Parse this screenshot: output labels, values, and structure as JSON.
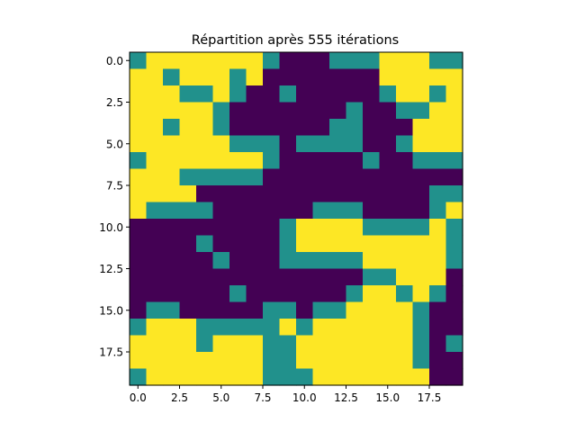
{
  "chart_data": {
    "type": "heatmap",
    "title": "Répartition après 555 itérations",
    "xlabel": "",
    "ylabel": "",
    "xlim": [
      -0.5,
      19.5
    ],
    "ylim": [
      19.5,
      -0.5
    ],
    "xticks": [
      0.0,
      2.5,
      5.0,
      7.5,
      10.0,
      12.5,
      15.0,
      17.5
    ],
    "xtick_labels": [
      "0.0",
      "2.5",
      "5.0",
      "7.5",
      "10.0",
      "12.5",
      "15.0",
      "17.5"
    ],
    "yticks": [
      0.0,
      2.5,
      5.0,
      7.5,
      10.0,
      12.5,
      15.0,
      17.5
    ],
    "ytick_labels": [
      "0.0",
      "2.5",
      "5.0",
      "7.5",
      "10.0",
      "12.5",
      "15.0",
      "17.5"
    ],
    "grid": false,
    "colormap": {
      "0": "#440154",
      "1": "#21918c",
      "2": "#fde725"
    },
    "values": [
      [
        1,
        2,
        2,
        2,
        2,
        2,
        2,
        2,
        1,
        0,
        0,
        0,
        1,
        1,
        1,
        2,
        2,
        2,
        1,
        1
      ],
      [
        2,
        2,
        1,
        2,
        2,
        2,
        1,
        2,
        0,
        0,
        0,
        0,
        0,
        0,
        0,
        2,
        2,
        2,
        2,
        2
      ],
      [
        2,
        2,
        2,
        1,
        1,
        2,
        1,
        0,
        0,
        1,
        0,
        0,
        0,
        0,
        0,
        1,
        2,
        2,
        1,
        2
      ],
      [
        2,
        2,
        2,
        2,
        2,
        1,
        0,
        0,
        0,
        0,
        0,
        0,
        0,
        1,
        0,
        0,
        1,
        1,
        2,
        2
      ],
      [
        2,
        2,
        1,
        2,
        2,
        1,
        0,
        0,
        0,
        0,
        0,
        0,
        1,
        1,
        0,
        0,
        0,
        2,
        2,
        2
      ],
      [
        2,
        2,
        2,
        2,
        2,
        2,
        1,
        1,
        1,
        0,
        1,
        1,
        1,
        1,
        0,
        0,
        1,
        2,
        2,
        2
      ],
      [
        1,
        2,
        2,
        2,
        2,
        2,
        2,
        2,
        1,
        0,
        0,
        0,
        0,
        0,
        1,
        0,
        0,
        1,
        1,
        1
      ],
      [
        2,
        2,
        2,
        1,
        1,
        1,
        1,
        1,
        0,
        0,
        0,
        0,
        0,
        0,
        0,
        0,
        0,
        0,
        0,
        0
      ],
      [
        2,
        2,
        2,
        2,
        0,
        0,
        0,
        0,
        0,
        0,
        0,
        0,
        0,
        0,
        0,
        0,
        0,
        0,
        1,
        1
      ],
      [
        2,
        1,
        1,
        1,
        1,
        0,
        0,
        0,
        0,
        0,
        0,
        1,
        1,
        1,
        0,
        0,
        0,
        0,
        1,
        2
      ],
      [
        0,
        0,
        0,
        0,
        0,
        0,
        0,
        0,
        0,
        1,
        2,
        2,
        2,
        2,
        1,
        1,
        1,
        1,
        2,
        1
      ],
      [
        0,
        0,
        0,
        0,
        1,
        0,
        0,
        0,
        0,
        1,
        2,
        2,
        2,
        2,
        2,
        2,
        2,
        2,
        2,
        1
      ],
      [
        0,
        0,
        0,
        0,
        0,
        1,
        0,
        0,
        0,
        1,
        1,
        1,
        1,
        1,
        2,
        2,
        2,
        2,
        2,
        1
      ],
      [
        0,
        0,
        0,
        0,
        0,
        0,
        0,
        0,
        0,
        0,
        0,
        0,
        0,
        0,
        1,
        1,
        2,
        2,
        2,
        0
      ],
      [
        0,
        0,
        0,
        0,
        0,
        0,
        1,
        0,
        0,
        0,
        0,
        0,
        0,
        1,
        2,
        2,
        1,
        2,
        1,
        0
      ],
      [
        0,
        1,
        1,
        0,
        0,
        0,
        0,
        0,
        1,
        1,
        0,
        1,
        1,
        2,
        2,
        2,
        2,
        1,
        0,
        0
      ],
      [
        1,
        2,
        2,
        2,
        1,
        1,
        1,
        1,
        1,
        2,
        1,
        2,
        2,
        2,
        2,
        2,
        2,
        1,
        0,
        0
      ],
      [
        2,
        2,
        2,
        2,
        1,
        2,
        2,
        2,
        1,
        1,
        2,
        2,
        2,
        2,
        2,
        2,
        2,
        1,
        0,
        1
      ],
      [
        2,
        2,
        2,
        2,
        2,
        2,
        2,
        2,
        1,
        1,
        2,
        2,
        2,
        2,
        2,
        2,
        2,
        1,
        0,
        0
      ],
      [
        1,
        2,
        2,
        2,
        2,
        2,
        2,
        2,
        1,
        1,
        1,
        2,
        2,
        2,
        2,
        2,
        2,
        2,
        0,
        0
      ]
    ]
  }
}
